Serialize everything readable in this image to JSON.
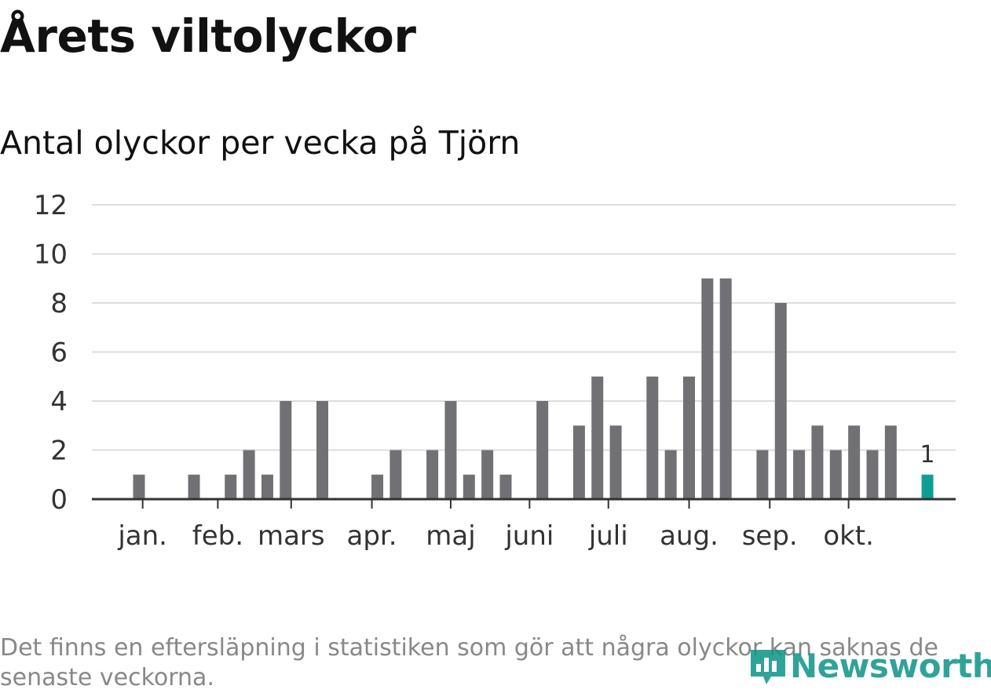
{
  "header": {
    "title": "Årets viltolyckor",
    "subtitle": "Antal olyckor per vecka på Tjörn"
  },
  "footnote": "Det finns en eftersläpning i statistiken som gör att några olyckor kan saknas de senaste veckorna.",
  "brand": {
    "name": "Newsworthy",
    "color": "#0d9488"
  },
  "colors": {
    "bar": "#717074",
    "highlight": "#0d9e94",
    "grid": "#dddddd",
    "axis": "#333333"
  },
  "chart_data": {
    "type": "bar",
    "title": "Antal olyckor per vecka på Tjörn",
    "xlabel": "",
    "ylabel": "",
    "ylim": [
      0,
      12
    ],
    "yticks": [
      "0",
      "2",
      "4",
      "6",
      "8",
      "10",
      "12"
    ],
    "grid": true,
    "weeks": [
      1,
      2,
      3,
      4,
      5,
      6,
      7,
      8,
      9,
      10,
      11,
      12,
      13,
      14,
      15,
      16,
      17,
      18,
      19,
      20,
      21,
      22,
      23,
      24,
      25,
      26,
      27,
      28,
      29,
      30,
      31,
      32,
      33,
      34,
      35,
      36,
      37,
      38,
      39,
      40,
      41,
      42,
      43,
      44
    ],
    "values": [
      1,
      0,
      0,
      1,
      0,
      1,
      2,
      1,
      4,
      0,
      4,
      0,
      0,
      1,
      2,
      0,
      2,
      4,
      1,
      2,
      1,
      0,
      4,
      0,
      3,
      5,
      3,
      0,
      5,
      2,
      5,
      9,
      9,
      0,
      2,
      8,
      2,
      3,
      2,
      3,
      2,
      3,
      0,
      1
    ],
    "highlight_index": 43,
    "annotation": {
      "week": 44,
      "label": "1"
    },
    "month_ticks": [
      {
        "label": "jan.",
        "week": 1.2
      },
      {
        "label": "feb.",
        "week": 5.3
      },
      {
        "label": "mars",
        "week": 9.3
      },
      {
        "label": "apr.",
        "week": 13.7
      },
      {
        "label": "maj",
        "week": 18.0
      },
      {
        "label": "juni",
        "week": 22.3
      },
      {
        "label": "juli",
        "week": 26.6
      },
      {
        "label": "aug.",
        "week": 31.0
      },
      {
        "label": "sep.",
        "week": 35.4
      },
      {
        "label": "okt.",
        "week": 39.7
      }
    ]
  }
}
